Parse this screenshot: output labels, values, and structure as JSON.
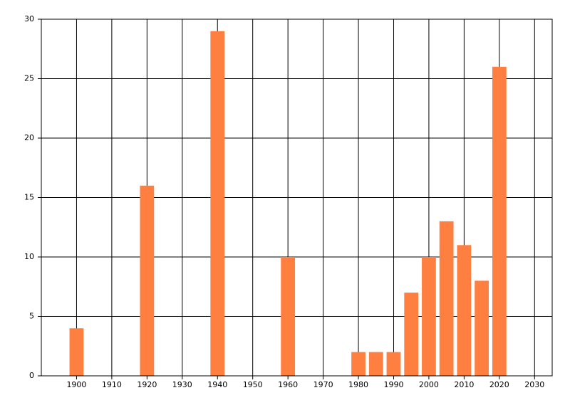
{
  "chart_data": {
    "type": "bar",
    "x": [
      1900,
      1920,
      1940,
      1960,
      1980,
      1985,
      1990,
      1995,
      2000,
      2005,
      2010,
      2015,
      2020
    ],
    "values": [
      4,
      16,
      29,
      10,
      2,
      2,
      2,
      7,
      10,
      13,
      11,
      8,
      26
    ],
    "color": "#ff7f41",
    "xlim": [
      1890,
      2035
    ],
    "xticks": [
      1900,
      1910,
      1920,
      1930,
      1940,
      1950,
      1960,
      1970,
      1980,
      1990,
      2000,
      2010,
      2020,
      2030
    ],
    "ylim": [
      0,
      30
    ],
    "yticks": [
      0,
      5,
      10,
      15,
      20,
      25,
      30
    ],
    "grid": true
  }
}
